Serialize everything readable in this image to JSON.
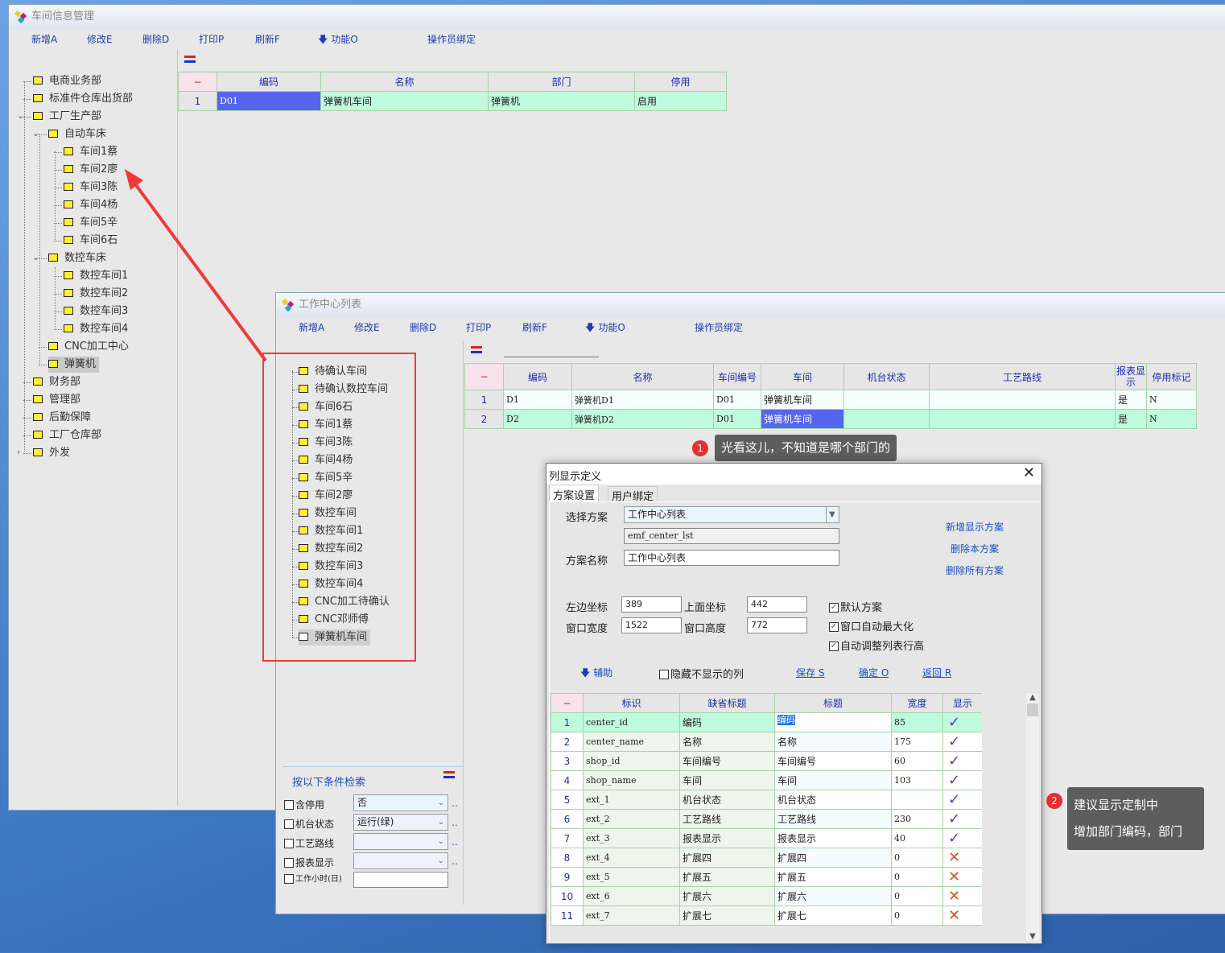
{
  "main_window": {
    "title": "车间信息管理",
    "toolbar": [
      "新增A",
      "修改E",
      "删除D",
      "打印P",
      "刷新F",
      "功能O"
    ],
    "toolbar_extra": "操作员绑定",
    "grid": {
      "headers": [
        "−",
        "编码",
        "名称",
        "部门",
        "停用"
      ],
      "rows": [
        [
          "1",
          "D01",
          "弹簧机车间",
          "弹簧机",
          "启用"
        ]
      ]
    },
    "tree": [
      {
        "label": "电商业务部",
        "level": 0
      },
      {
        "label": "标准件仓库出货部",
        "level": 0
      },
      {
        "label": "工厂生产部",
        "level": 0,
        "expanded": true
      },
      {
        "label": "自动车床",
        "level": 1,
        "expanded": true
      },
      {
        "label": "车间1蔡",
        "level": 2
      },
      {
        "label": "车间2廖",
        "level": 2
      },
      {
        "label": "车间3陈",
        "level": 2
      },
      {
        "label": "车间4杨",
        "level": 2
      },
      {
        "label": "车间5辛",
        "level": 2
      },
      {
        "label": "车间6石",
        "level": 2
      },
      {
        "label": "数控车床",
        "level": 1,
        "expanded": true
      },
      {
        "label": "数控车间1",
        "level": 2
      },
      {
        "label": "数控车间2",
        "level": 2
      },
      {
        "label": "数控车间3",
        "level": 2
      },
      {
        "label": "数控车间4",
        "level": 2
      },
      {
        "label": "CNC加工中心",
        "level": 1
      },
      {
        "label": "弹簧机",
        "level": 1,
        "selected": true
      },
      {
        "label": "财务部",
        "level": 0
      },
      {
        "label": "管理部",
        "level": 0
      },
      {
        "label": "后勤保障",
        "level": 0
      },
      {
        "label": "工厂仓库部",
        "level": 0
      },
      {
        "label": "外发",
        "level": 0,
        "collapsed": true
      }
    ]
  },
  "center_window": {
    "title": "工作中心列表",
    "toolbar": [
      "新增A",
      "修改E",
      "删除D",
      "打印P",
      "刷新F",
      "功能O"
    ],
    "toolbar_extra": "操作员绑定",
    "tree": [
      "待确认车间",
      "待确认数控车间",
      "车间6石",
      "车间1蔡",
      "车间3陈",
      "车间4杨",
      "车间5辛",
      "车间2廖",
      "数控车间",
      "数控车间1",
      "数控车间2",
      "数控车间3",
      "数控车间4",
      "CNC加工待确认",
      "CNC邓师傅",
      "弹簧机车间"
    ],
    "grid": {
      "headers": [
        "−",
        "编码",
        "名称",
        "车间编号",
        "车间",
        "机台状态",
        "工艺路线",
        "报表显示",
        "停用标记"
      ],
      "rows": [
        [
          "1",
          "D1",
          "弹簧机D1",
          "D01",
          "弹簧机车间",
          "",
          "",
          "是",
          "N"
        ],
        [
          "2",
          "D2",
          "弹簧机D2",
          "D01",
          "弹簧机车间",
          "",
          "",
          "是",
          "N"
        ]
      ]
    },
    "search": {
      "title": "按以下条件检索",
      "fields": [
        {
          "label": "含停用",
          "value": "否"
        },
        {
          "label": "机台状态",
          "value": "运行(绿)"
        },
        {
          "label": "工艺路线",
          "value": ""
        },
        {
          "label": "报表显示",
          "value": ""
        },
        {
          "label": "工作小时(日)",
          "value": ""
        }
      ]
    }
  },
  "annotations": [
    {
      "num": "1",
      "text": "光看这儿，不知道是哪个部门的"
    },
    {
      "num": "2",
      "line1": "建议显示定制中",
      "line2": "增加部门编码，部门"
    }
  ],
  "dialog": {
    "title": "列显示定义",
    "tabs": [
      "方案设置",
      "用户绑定"
    ],
    "scheme_label": "选择方案",
    "scheme_value": "工作中心列表",
    "scheme_code": "emf_center_lst",
    "name_label": "方案名称",
    "name_value": "工作中心列表",
    "left_label": "左边坐标",
    "left_value": "389",
    "top_label": "上面坐标",
    "top_value": "442",
    "width_label": "窗口宽度",
    "width_value": "1522",
    "height_label": "窗口高度",
    "height_value": "772",
    "checks": [
      {
        "label": "默认方案",
        "checked": true
      },
      {
        "label": "窗口自动最大化",
        "checked": true
      },
      {
        "label": "自动调整列表行高",
        "checked": true
      }
    ],
    "links": [
      "新增显示方案",
      "删除本方案",
      "删除所有方案"
    ],
    "assist": "辅助",
    "hide_cols": "隐藏不显示的列",
    "save": "保存 S",
    "ok": "确定 O",
    "back": "返回 R",
    "grid": {
      "headers": [
        "−",
        "标识",
        "缺省标题",
        "标题",
        "宽度",
        "显示"
      ],
      "rows": [
        [
          "1",
          "center_id",
          "编码",
          "编码",
          "85",
          true
        ],
        [
          "2",
          "center_name",
          "名称",
          "名称",
          "175",
          true
        ],
        [
          "3",
          "shop_id",
          "车间编号",
          "车间编号",
          "60",
          true
        ],
        [
          "4",
          "shop_name",
          "车间",
          "车间",
          "103",
          true
        ],
        [
          "5",
          "ext_1",
          "机台状态",
          "机台状态",
          "",
          true
        ],
        [
          "6",
          "ext_2",
          "工艺路线",
          "工艺路线",
          "230",
          true
        ],
        [
          "7",
          "ext_3",
          "报表显示",
          "报表显示",
          "40",
          true
        ],
        [
          "8",
          "ext_4",
          "扩展四",
          "扩展四",
          "0",
          false
        ],
        [
          "9",
          "ext_5",
          "扩展五",
          "扩展五",
          "0",
          false
        ],
        [
          "10",
          "ext_6",
          "扩展六",
          "扩展六",
          "0",
          false
        ],
        [
          "11",
          "ext_7",
          "扩展七",
          "扩展七",
          "0",
          false
        ]
      ]
    }
  },
  "colors": {
    "row_green": "#c0fadc",
    "selected": "#5566ee",
    "header_text": "#1a2db0",
    "annotation_red": "#e53030"
  }
}
